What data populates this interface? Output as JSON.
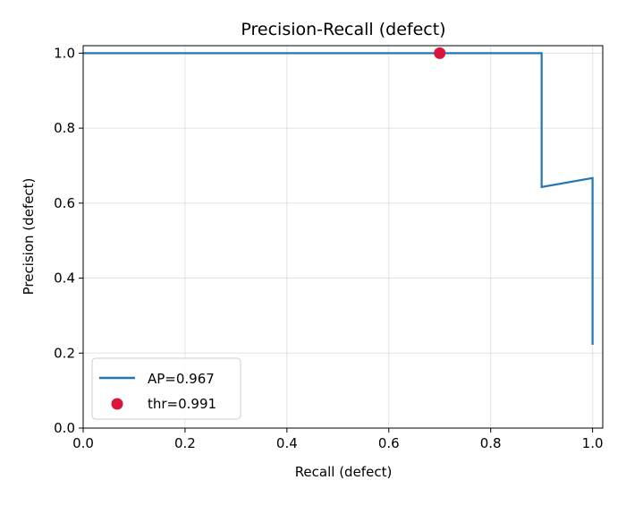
{
  "chart_data": {
    "type": "line",
    "title": "Precision-Recall (defect)",
    "xlabel": "Recall (defect)",
    "ylabel": "Precision (defect)",
    "xlim": [
      0.0,
      1.02
    ],
    "ylim": [
      0.0,
      1.02
    ],
    "xticks": [
      0.0,
      0.2,
      0.4,
      0.6,
      0.8,
      1.0
    ],
    "yticks": [
      0.0,
      0.2,
      0.4,
      0.6,
      0.8,
      1.0
    ],
    "xtick_labels": [
      "0.0",
      "0.2",
      "0.4",
      "0.6",
      "0.8",
      "1.0"
    ],
    "ytick_labels": [
      "0.0",
      "0.2",
      "0.4",
      "0.6",
      "0.8",
      "1.0"
    ],
    "grid": true,
    "legend_position": "lower-left",
    "series": [
      {
        "name": "AP=0.967",
        "kind": "line",
        "color": "#1f77b4",
        "x": [
          0.0,
          0.9,
          0.9,
          1.0,
          1.0
        ],
        "y": [
          1.0,
          1.0,
          0.643,
          0.667,
          0.222
        ]
      },
      {
        "name": "thr=0.991",
        "kind": "scatter",
        "color": "#dc143c",
        "x": [
          0.7
        ],
        "y": [
          1.0
        ]
      }
    ]
  }
}
